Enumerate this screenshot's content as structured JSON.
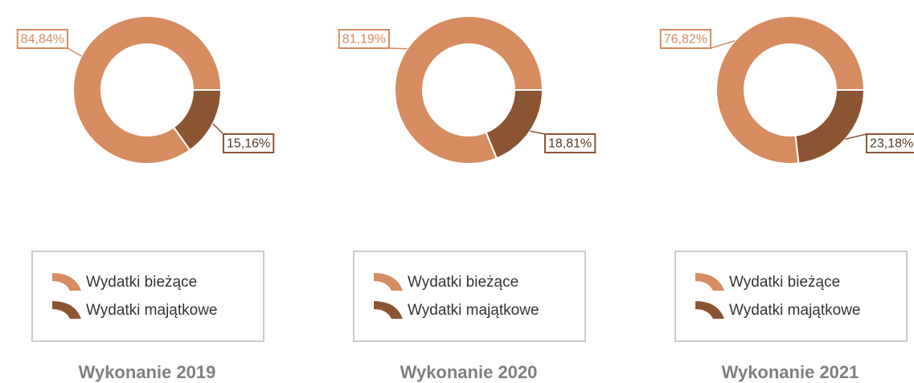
{
  "chart_data": [
    {
      "type": "pie",
      "title": "Wykonanie 2019",
      "categories": [
        "Wydatki bieżące",
        "Wydatki majątkowe"
      ],
      "values": [
        84.84,
        15.16
      ],
      "value_labels": [
        "84,84%",
        "15,16%"
      ],
      "colors": [
        "#d68b60",
        "#8b5533"
      ]
    },
    {
      "type": "pie",
      "title": "Wykonanie 2020",
      "categories": [
        "Wydatki bieżące",
        "Wydatki majątkowe"
      ],
      "values": [
        81.19,
        18.81
      ],
      "value_labels": [
        "81,19%",
        "18,81%"
      ],
      "colors": [
        "#d68b60",
        "#8b5533"
      ]
    },
    {
      "type": "pie",
      "title": "Wykonanie 2021",
      "categories": [
        "Wydatki bieżące",
        "Wydatki majątkowe"
      ],
      "values": [
        76.82,
        23.18
      ],
      "value_labels": [
        "76,82%",
        "23,18%"
      ],
      "colors": [
        "#d68b60",
        "#8b5533"
      ]
    }
  ]
}
